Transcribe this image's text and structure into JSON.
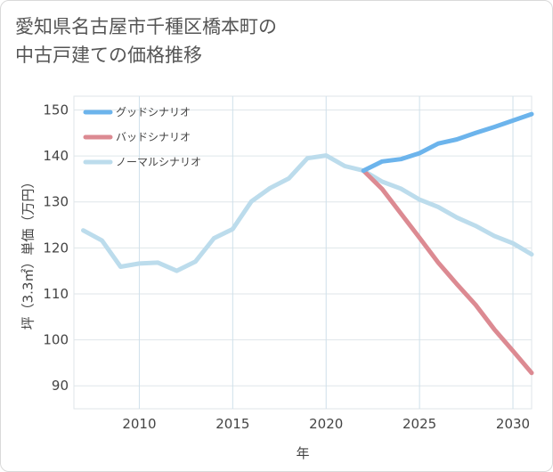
{
  "title_lines": [
    "愛知県名古屋市千種区橋本町の",
    "中古戸建ての価格推移"
  ],
  "chart_data": {
    "type": "line",
    "xlabel": "年",
    "ylabel": "坪（3.3㎡）単価（万円）",
    "xlim": [
      2006.5,
      2031
    ],
    "ylim": [
      85,
      153
    ],
    "x_ticks": [
      2010,
      2015,
      2020,
      2025,
      2030
    ],
    "y_ticks": [
      90,
      100,
      110,
      120,
      130,
      140,
      150
    ],
    "grid": true,
    "legend_position": "top-left",
    "series": [
      {
        "name": "グッドシナリオ",
        "color": "#6cb4ec",
        "x": [
          2022,
          2023,
          2024,
          2025,
          2026,
          2027,
          2028,
          2029,
          2030,
          2031
        ],
        "y": [
          136.8,
          138.8,
          139.3,
          140.6,
          142.7,
          143.6,
          145.0,
          146.3,
          147.7,
          149.1
        ]
      },
      {
        "name": "バッドシナリオ",
        "color": "#dc8a92",
        "x": [
          2022,
          2023,
          2024,
          2025,
          2026,
          2027,
          2028,
          2029,
          2030,
          2031
        ],
        "y": [
          136.8,
          132.8,
          127.5,
          122.2,
          116.8,
          112.1,
          107.6,
          102.3,
          97.6,
          92.8
        ]
      },
      {
        "name": "ノーマルシナリオ",
        "color": "#bcdcec",
        "x": [
          2007,
          2008,
          2009,
          2010,
          2011,
          2012,
          2013,
          2014,
          2015,
          2016,
          2017,
          2018,
          2019,
          2020,
          2021,
          2022,
          2023,
          2024,
          2025,
          2026,
          2027,
          2028,
          2029,
          2030,
          2031
        ],
        "y": [
          123.8,
          121.6,
          115.9,
          116.6,
          116.8,
          115.0,
          117.0,
          122.1,
          124.1,
          130.1,
          133.0,
          135.1,
          139.5,
          140.1,
          137.8,
          136.8,
          134.4,
          132.9,
          130.5,
          128.9,
          126.6,
          124.8,
          122.6,
          121.0,
          118.6
        ]
      }
    ]
  }
}
